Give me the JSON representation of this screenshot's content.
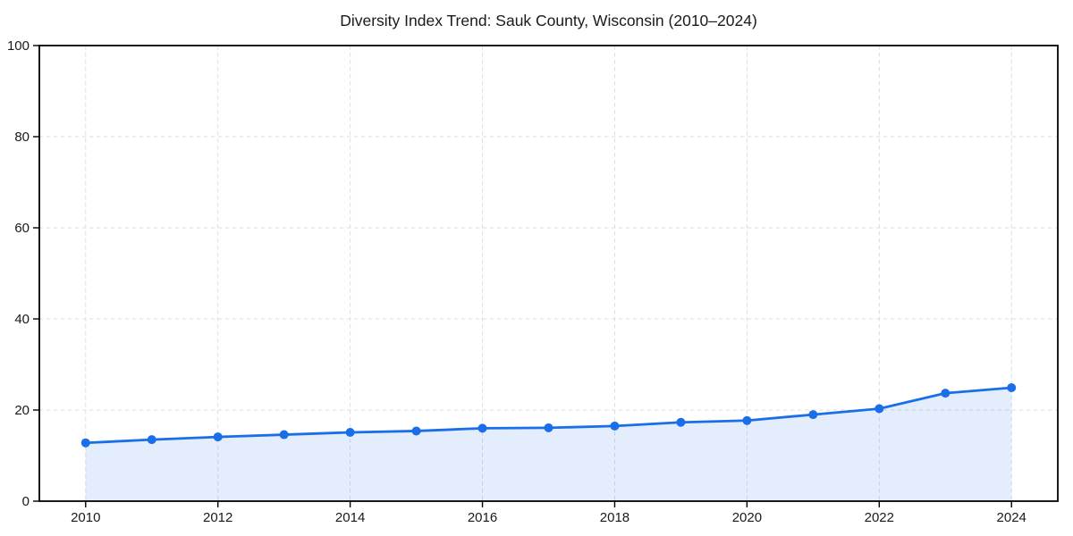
{
  "chart_data": {
    "type": "line",
    "title": "Diversity Index Trend: Sauk County, Wisconsin (2010–2024)",
    "series_name": "Diversity Index",
    "x": [
      2010,
      2011,
      2012,
      2013,
      2014,
      2015,
      2016,
      2017,
      2018,
      2019,
      2020,
      2021,
      2022,
      2023,
      2024
    ],
    "values": [
      12.8,
      13.5,
      14.1,
      14.6,
      15.1,
      15.4,
      16.0,
      16.1,
      16.5,
      17.3,
      17.7,
      19.0,
      20.3,
      23.7,
      24.9
    ],
    "xlabel": "",
    "ylabel": "",
    "xlim": [
      2009.3,
      2024.7
    ],
    "ylim": [
      0,
      100
    ],
    "xticks": [
      2010,
      2012,
      2014,
      2016,
      2018,
      2020,
      2022,
      2024
    ],
    "yticks": [
      0,
      20,
      40,
      60,
      80,
      100
    ],
    "grid": true,
    "legend": "none",
    "line_color": "#1a6ee8",
    "fill_opacity": 0.12,
    "grid_color": "#dcdcdc",
    "spine_color": "#000000",
    "tick_label_color": "#1a1a1a",
    "marker": "circle"
  }
}
